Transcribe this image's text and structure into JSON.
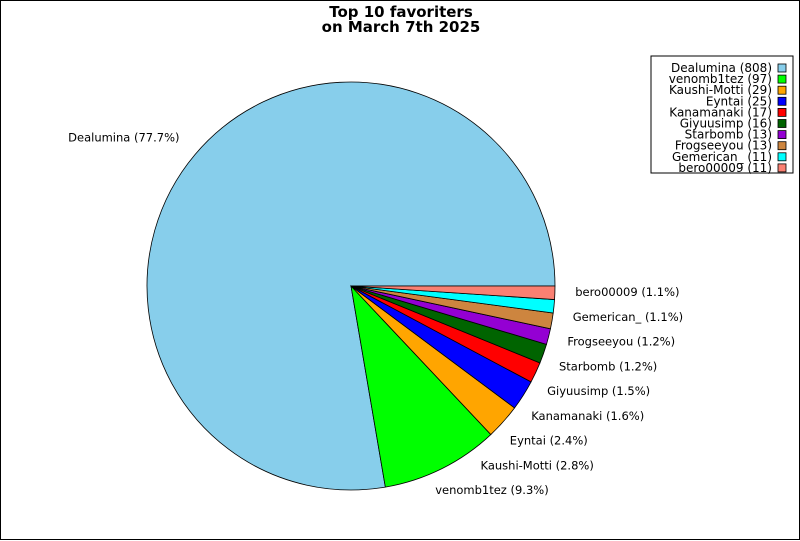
{
  "chart_data": {
    "type": "pie",
    "title_line1": "Top 10 favoriters",
    "title_line2": "on March 7th 2025",
    "slices": [
      {
        "name": "Dealumina",
        "value": 808,
        "pct_label": "Dealumina (77.7%)",
        "legend_label": "Dealumina (808)",
        "color": "#87CEEB"
      },
      {
        "name": "venomb1tez",
        "value": 97,
        "pct_label": "venomb1tez (9.3%)",
        "legend_label": "venomb1tez (97)",
        "color": "#00FF00"
      },
      {
        "name": "Kaushi-Motti",
        "value": 29,
        "pct_label": "Kaushi-Motti (2.8%)",
        "legend_label": "Kaushi-Motti (29)",
        "color": "#FFA500"
      },
      {
        "name": "Eyntai",
        "value": 25,
        "pct_label": "Eyntai (2.4%)",
        "legend_label": "Eyntai (25)",
        "color": "#0000FF"
      },
      {
        "name": "Kanamanaki",
        "value": 17,
        "pct_label": "Kanamanaki (1.6%)",
        "legend_label": "Kanamanaki (17)",
        "color": "#FF0000"
      },
      {
        "name": "Giyuusimp",
        "value": 16,
        "pct_label": "Giyuusimp (1.5%)",
        "legend_label": "Giyuusimp (16)",
        "color": "#006400"
      },
      {
        "name": "Starbomb",
        "value": 13,
        "pct_label": "Starbomb (1.2%)",
        "legend_label": "Starbomb (13)",
        "color": "#9400D3"
      },
      {
        "name": "Frogseeyou",
        "value": 13,
        "pct_label": "Frogseeyou (1.2%)",
        "legend_label": "Frogseeyou (13)",
        "color": "#CD853F"
      },
      {
        "name": "Gemerican_",
        "value": 11,
        "pct_label": "Gemerican_ (1.1%)",
        "legend_label": "Gemerican_ (11)",
        "color": "#00FFFF"
      },
      {
        "name": "bero00009",
        "value": 11,
        "pct_label": "bero00009 (1.1%)",
        "legend_label": "bero00009 (11)",
        "color": "#FA8072"
      }
    ],
    "legend_position": "top-right"
  }
}
